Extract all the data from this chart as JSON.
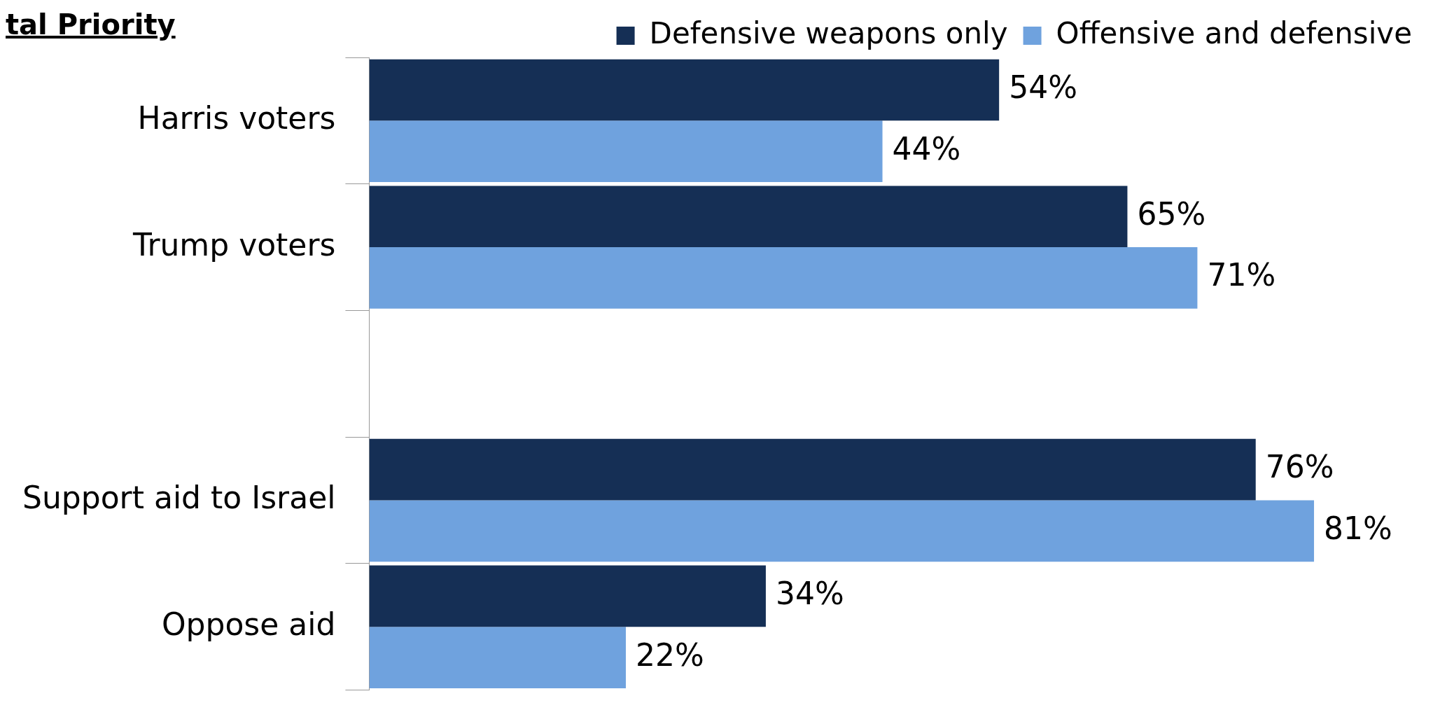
{
  "chart_data": {
    "type": "bar",
    "orientation": "horizontal",
    "title": "tal Priority",
    "categories": [
      "Harris voters",
      "Trump voters",
      null,
      "Support aid to Israel",
      "Oppose aid"
    ],
    "series": [
      {
        "name": "Defensive weapons only",
        "color": "#152f55",
        "values": [
          54,
          65,
          null,
          76,
          34
        ],
        "value_labels": [
          "54%",
          "65%",
          null,
          "76%",
          "34%"
        ]
      },
      {
        "name": "Offensive and defensive",
        "color": "#6fa2de",
        "values": [
          44,
          71,
          null,
          81,
          22
        ],
        "value_labels": [
          "44%",
          "71%",
          null,
          "81%",
          "22%"
        ]
      }
    ],
    "legend": "top right",
    "grid": false
  }
}
